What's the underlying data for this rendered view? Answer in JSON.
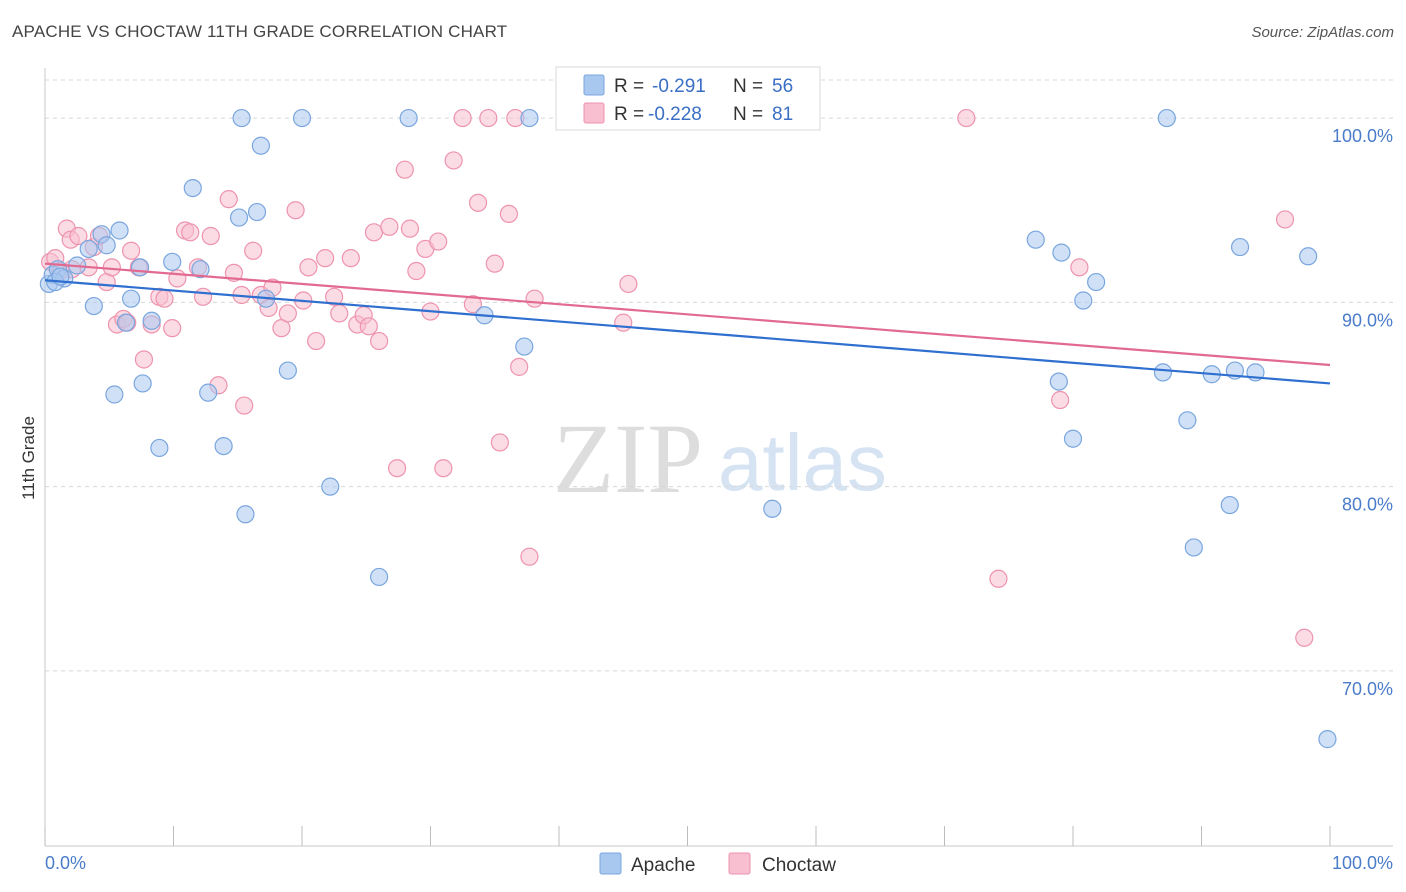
{
  "header": {
    "title": "APACHE VS CHOCTAW 11TH GRADE CORRELATION CHART",
    "source": "Source: ZipAtlas.com"
  },
  "watermark": {
    "zip": "ZIP",
    "atlas": "atlas"
  },
  "legend": {
    "apache": {
      "r_label": "R =",
      "r_value": "-0.291",
      "n_label": "N =",
      "n_value": "56"
    },
    "choctaw": {
      "r_label": "R =",
      "r_value": "-0.228",
      "n_label": "N =",
      "n_value": "81"
    }
  },
  "bottom_legend": {
    "apache": "Apache",
    "choctaw": "Choctaw"
  },
  "colors": {
    "apache_fill": "#a9c8f0",
    "apache_stroke": "#7aa6de",
    "apache_line": "#2f6fcf",
    "choctaw_fill": "#f7bfd0",
    "choctaw_stroke": "#ee93ae",
    "choctaw_line": "#e26a92",
    "grid": "#d8d8d8",
    "tick_label": "#4a7cc9"
  },
  "chart_data": {
    "type": "scatter",
    "title": "APACHE VS CHOCTAW 11TH GRADE CORRELATION CHART",
    "xlabel": "",
    "ylabel": "11th Grade",
    "xlim": [
      0,
      100
    ],
    "ylim": [
      60.5,
      102.5
    ],
    "x_tick_labels": [
      "0.0%",
      "100.0%"
    ],
    "y_ticks": [
      {
        "value": 100,
        "label": "100.0%"
      },
      {
        "value": 90,
        "label": "90.0%"
      },
      {
        "value": 80,
        "label": "80.0%"
      },
      {
        "value": 70,
        "label": "70.0%"
      }
    ],
    "grid": true,
    "legend_position": "top-center",
    "series": [
      {
        "name": "Apache",
        "trend": {
          "x": [
            0,
            100
          ],
          "y": [
            91.2,
            85.6
          ]
        },
        "points": [
          [
            0.3,
            91.0
          ],
          [
            0.6,
            91.5
          ],
          [
            1.0,
            91.8
          ],
          [
            1.5,
            91.3
          ],
          [
            2.5,
            92.0
          ],
          [
            3.4,
            92.9
          ],
          [
            3.8,
            89.8
          ],
          [
            4.4,
            93.7
          ],
          [
            4.8,
            93.1
          ],
          [
            5.4,
            85.0
          ],
          [
            5.8,
            93.9
          ],
          [
            6.3,
            88.9
          ],
          [
            6.7,
            90.2
          ],
          [
            7.6,
            85.6
          ],
          [
            7.4,
            91.9
          ],
          [
            8.3,
            89.0
          ],
          [
            8.9,
            82.1
          ],
          [
            9.9,
            92.2
          ],
          [
            11.5,
            96.2
          ],
          [
            12.1,
            91.8
          ],
          [
            12.7,
            85.1
          ],
          [
            13.9,
            82.2
          ],
          [
            15.1,
            94.6
          ],
          [
            15.6,
            78.5
          ],
          [
            15.3,
            100.0
          ],
          [
            16.5,
            94.9
          ],
          [
            16.8,
            98.5
          ],
          [
            17.2,
            90.2
          ],
          [
            18.9,
            86.3
          ],
          [
            20.0,
            100.0
          ],
          [
            22.2,
            80.0
          ],
          [
            26.0,
            75.1
          ],
          [
            28.3,
            100.0
          ],
          [
            34.2,
            89.3
          ],
          [
            37.3,
            87.6
          ],
          [
            37.7,
            100.0
          ],
          [
            56.6,
            78.8
          ],
          [
            77.1,
            93.4
          ],
          [
            78.9,
            85.7
          ],
          [
            79.1,
            92.7
          ],
          [
            80.0,
            82.6
          ],
          [
            80.8,
            90.1
          ],
          [
            81.8,
            91.1
          ],
          [
            87.0,
            86.2
          ],
          [
            87.3,
            100.0
          ],
          [
            88.9,
            83.6
          ],
          [
            89.4,
            76.7
          ],
          [
            90.8,
            86.1
          ],
          [
            92.2,
            79.0
          ],
          [
            92.6,
            86.3
          ],
          [
            93.0,
            93.0
          ],
          [
            94.2,
            86.2
          ],
          [
            98.3,
            92.5
          ],
          [
            99.8,
            66.3
          ],
          [
            0.8,
            91.1
          ],
          [
            1.2,
            91.4
          ]
        ]
      },
      {
        "name": "Choctaw",
        "trend": {
          "x": [
            0,
            100
          ],
          "y": [
            92.1,
            86.6
          ]
        },
        "points": [
          [
            0.4,
            92.2
          ],
          [
            0.8,
            92.4
          ],
          [
            1.2,
            91.7
          ],
          [
            1.7,
            94.0
          ],
          [
            2.0,
            93.4
          ],
          [
            2.6,
            93.6
          ],
          [
            3.4,
            91.9
          ],
          [
            3.8,
            93.0
          ],
          [
            4.2,
            93.6
          ],
          [
            4.8,
            91.1
          ],
          [
            5.2,
            91.9
          ],
          [
            5.6,
            88.8
          ],
          [
            6.1,
            89.1
          ],
          [
            6.7,
            92.8
          ],
          [
            7.3,
            91.9
          ],
          [
            7.7,
            86.9
          ],
          [
            8.3,
            88.8
          ],
          [
            8.9,
            90.3
          ],
          [
            9.3,
            90.2
          ],
          [
            9.9,
            88.6
          ],
          [
            10.3,
            91.3
          ],
          [
            10.9,
            93.9
          ],
          [
            11.3,
            93.8
          ],
          [
            11.9,
            91.9
          ],
          [
            12.3,
            90.3
          ],
          [
            12.9,
            93.6
          ],
          [
            13.5,
            85.5
          ],
          [
            14.3,
            95.6
          ],
          [
            14.7,
            91.6
          ],
          [
            15.3,
            90.4
          ],
          [
            15.5,
            84.4
          ],
          [
            16.2,
            92.8
          ],
          [
            16.8,
            90.4
          ],
          [
            17.4,
            89.7
          ],
          [
            17.7,
            90.8
          ],
          [
            18.4,
            88.6
          ],
          [
            18.9,
            89.4
          ],
          [
            19.5,
            95.0
          ],
          [
            20.1,
            90.1
          ],
          [
            20.5,
            91.9
          ],
          [
            21.1,
            87.9
          ],
          [
            21.8,
            92.4
          ],
          [
            22.5,
            90.3
          ],
          [
            22.9,
            89.4
          ],
          [
            23.8,
            92.4
          ],
          [
            24.3,
            88.8
          ],
          [
            24.8,
            89.3
          ],
          [
            25.6,
            93.8
          ],
          [
            26.0,
            87.9
          ],
          [
            26.8,
            94.1
          ],
          [
            27.4,
            81.0
          ],
          [
            28.0,
            97.2
          ],
          [
            28.4,
            94.0
          ],
          [
            28.9,
            91.7
          ],
          [
            29.6,
            92.9
          ],
          [
            30.0,
            89.5
          ],
          [
            30.6,
            93.3
          ],
          [
            31.0,
            81.0
          ],
          [
            31.8,
            97.7
          ],
          [
            32.5,
            100.0
          ],
          [
            33.3,
            89.9
          ],
          [
            33.7,
            95.4
          ],
          [
            34.5,
            100.0
          ],
          [
            35.0,
            92.1
          ],
          [
            35.4,
            82.4
          ],
          [
            36.1,
            94.8
          ],
          [
            36.6,
            100.0
          ],
          [
            36.9,
            86.5
          ],
          [
            37.7,
            76.2
          ],
          [
            38.1,
            90.2
          ],
          [
            45.0,
            88.9
          ],
          [
            45.4,
            91.0
          ],
          [
            71.7,
            100.0
          ],
          [
            74.2,
            75.0
          ],
          [
            79.0,
            84.7
          ],
          [
            80.5,
            91.9
          ],
          [
            96.5,
            94.5
          ],
          [
            98.0,
            71.8
          ],
          [
            6.4,
            88.9
          ],
          [
            2.1,
            91.8
          ],
          [
            25.2,
            88.7
          ]
        ]
      }
    ]
  }
}
